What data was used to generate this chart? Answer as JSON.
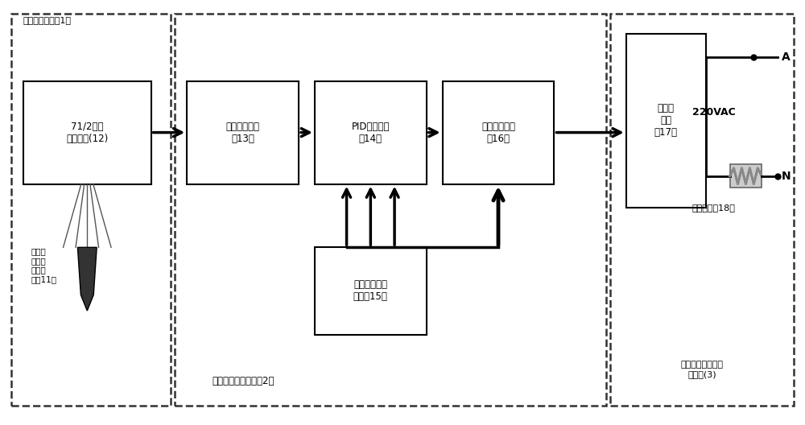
{
  "background_color": "#ffffff",
  "outer_border_color": "#000000",
  "dashed_border_color": "#555555",
  "box_fill": "#ffffff",
  "box_edge": "#000000",
  "font_color": "#000000",
  "fig_width": 10.0,
  "fig_height": 5.28,
  "section1_label": "精密测温装置（1）",
  "section2_label": "温度精密控制装置（2）",
  "section3_label": "固态继电器加热控\n制装置(3)",
  "box12_label": "71/2位高\n精度数表(12)",
  "box13_label": "温度转换模块\n（13）",
  "box14_label": "PID控制模块\n（14）",
  "box15_label": "自学习型调节\n模块（15）",
  "box16_label": "功率输出模块\n（16）",
  "box17_label": "固态继\n电器\n（17）",
  "sensor_label": "二等标\n准铂电\n阻温度\n计（11）",
  "heating_label": "加热组件（18）",
  "vac_label": "220VAC",
  "terminal_a": "A",
  "terminal_n": "N"
}
